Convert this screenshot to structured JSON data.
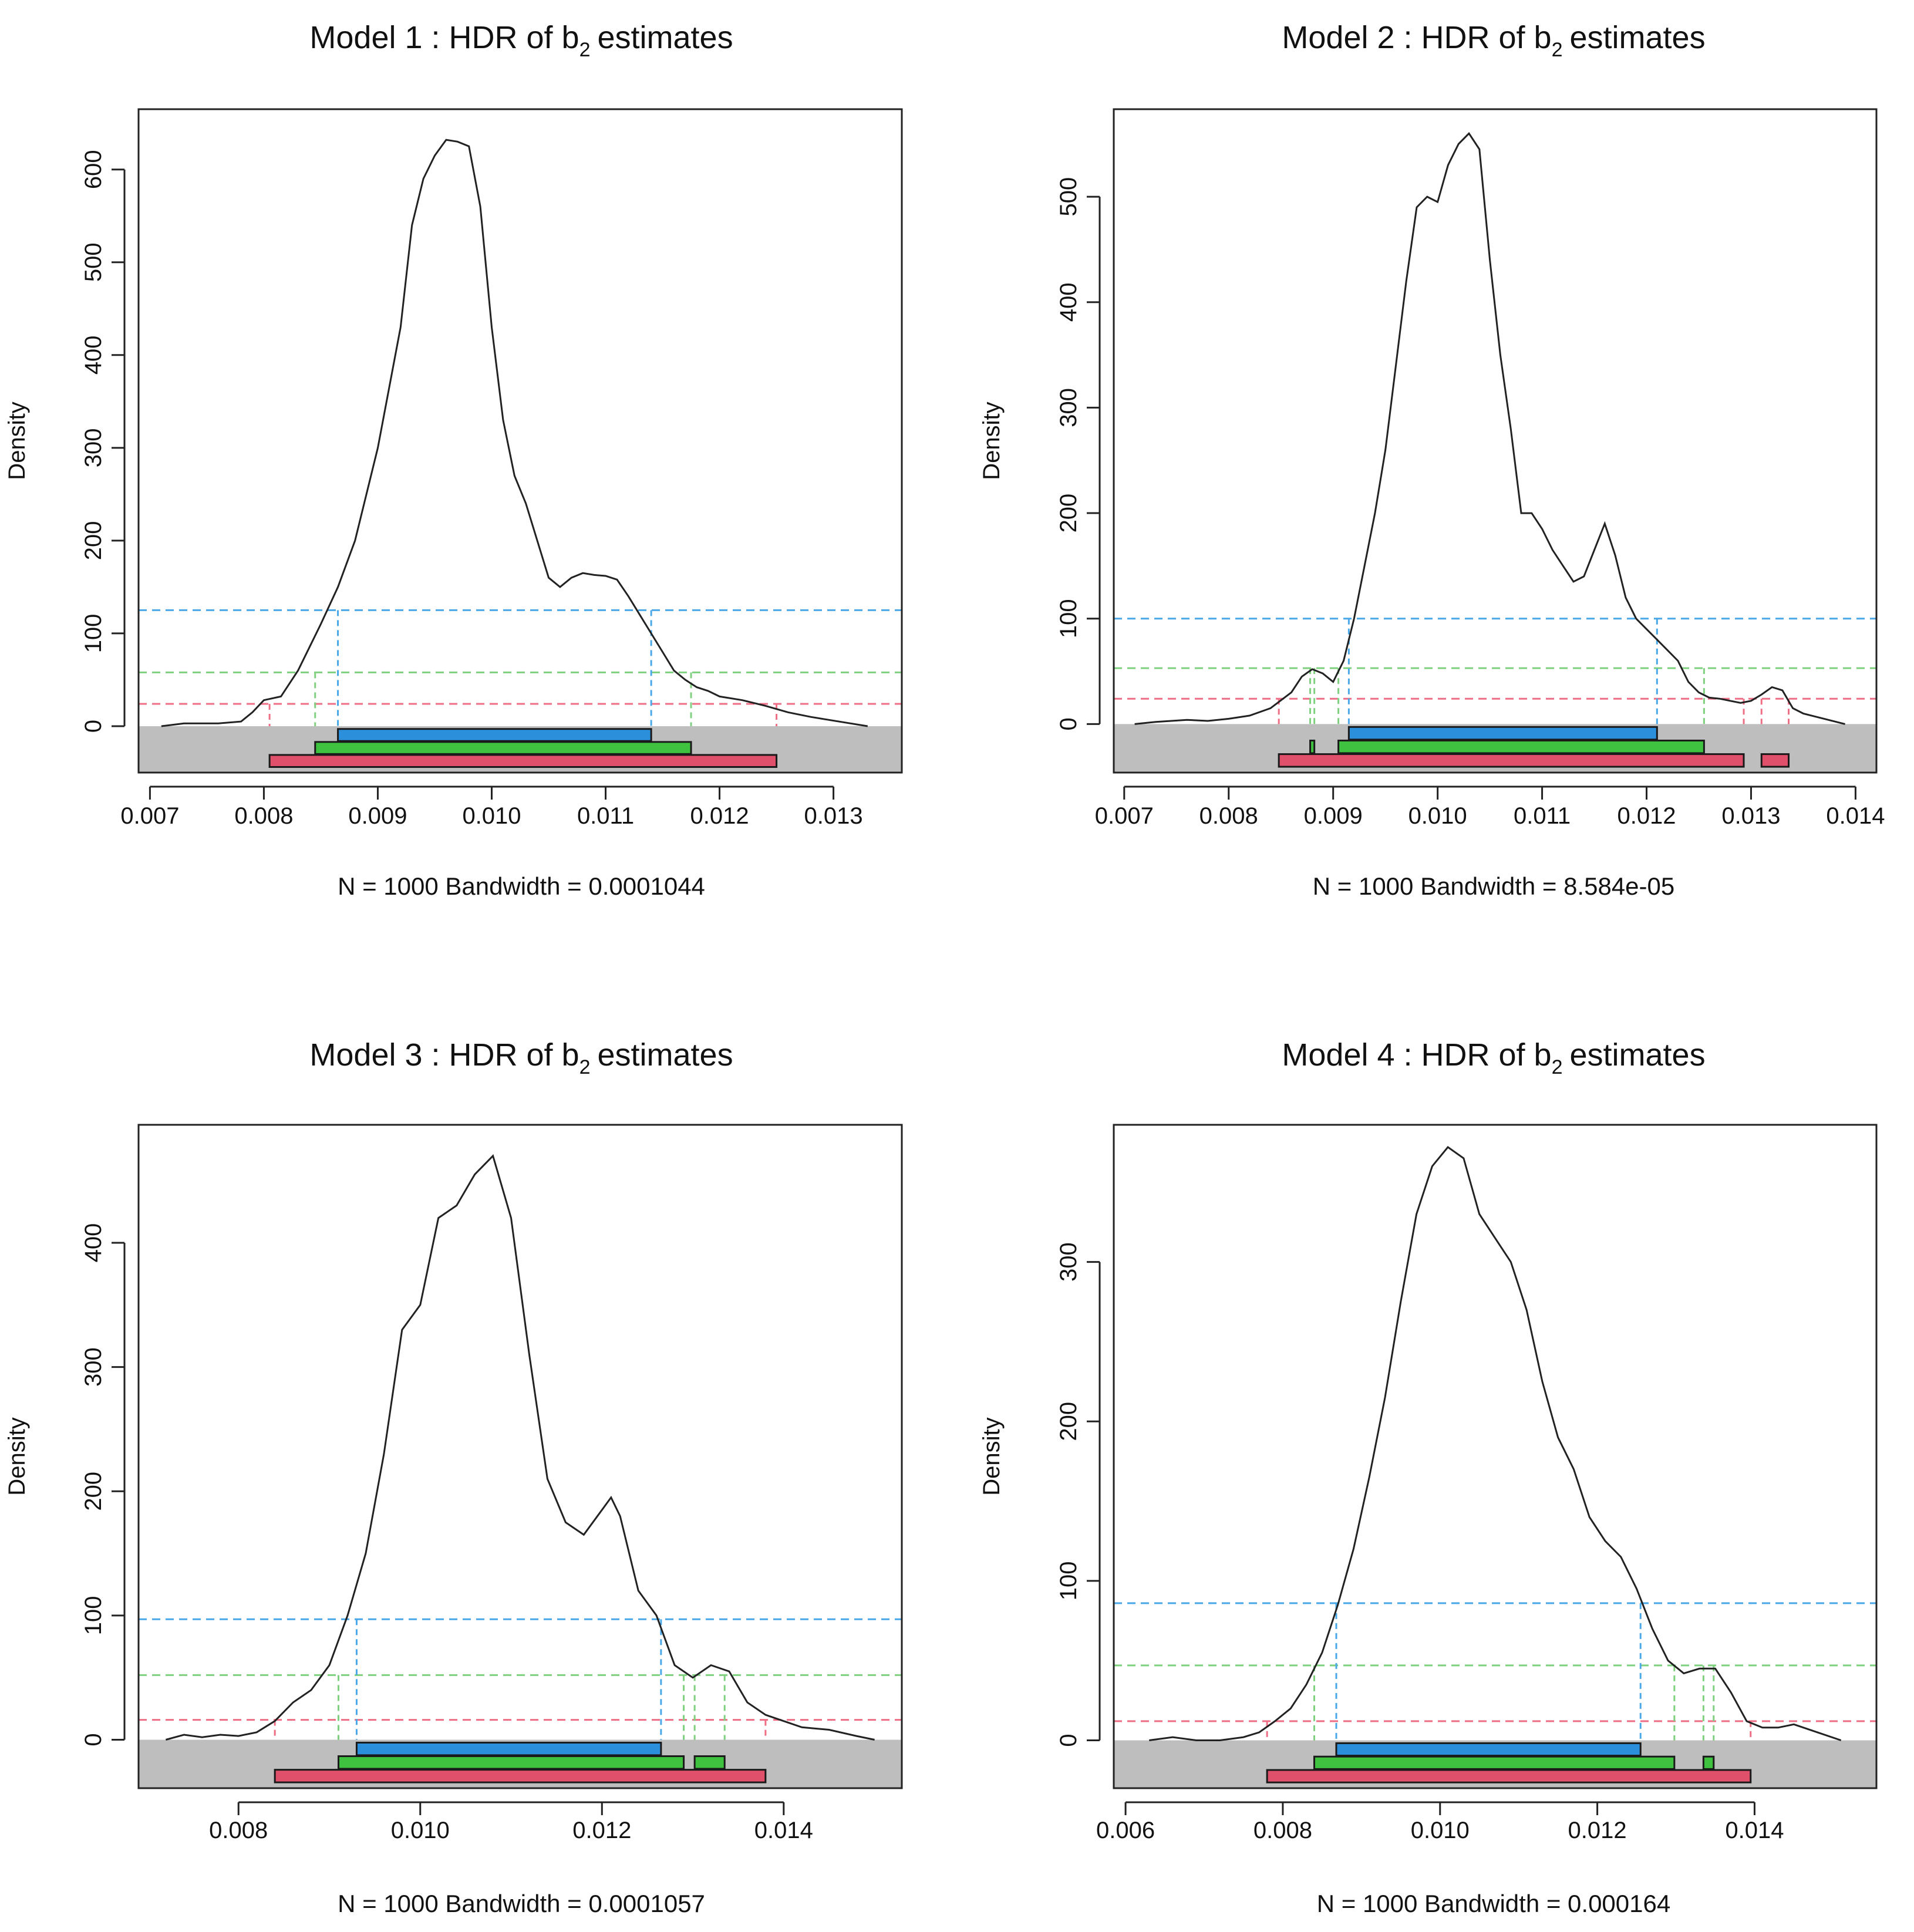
{
  "colors": {
    "hdr50": "#2b8fdb",
    "hdr95": "#3fc23f",
    "hdr99": "#e0506a",
    "line50": "#4aa8e8",
    "line95": "#7fd07f",
    "line99": "#ee6f85",
    "shade": "#bebebe",
    "curve": "#222222"
  },
  "chart_data": [
    {
      "type": "line",
      "title": "Model 1 :  HDR of b",
      "title_subscript": "2",
      "title_suffix": "estimates",
      "ylabel": "Density",
      "xsub": "N = 1000   Bandwidth = 0.0001044",
      "xlim": [
        0.0069,
        0.0136
      ],
      "ylim": [
        -50,
        665
      ],
      "xticks": [
        0.007,
        0.008,
        0.009,
        0.01,
        0.011,
        0.012,
        0.013
      ],
      "xtick_labels": [
        "0.007",
        "0.008",
        "0.009",
        "0.010",
        "0.011",
        "0.012",
        "0.013"
      ],
      "yticks": [
        0,
        100,
        200,
        300,
        400,
        500,
        600
      ],
      "ytick_labels": [
        "0",
        "100",
        "200",
        "300",
        "400",
        "500",
        "600"
      ],
      "density": {
        "x": [
          0.0071,
          0.0073,
          0.0076,
          0.0078,
          0.0079,
          0.008,
          0.00815,
          0.0083,
          0.0085,
          0.00865,
          0.0088,
          0.009,
          0.0092,
          0.0093,
          0.0094,
          0.0095,
          0.0096,
          0.0097,
          0.0098,
          0.0099,
          0.01,
          0.0101,
          0.0102,
          0.0103,
          0.0104,
          0.0105,
          0.0106,
          0.0107,
          0.0108,
          0.0109,
          0.011,
          0.0111,
          0.0112,
          0.0113,
          0.0114,
          0.0115,
          0.0116,
          0.0117,
          0.0118,
          0.0119,
          0.012,
          0.0122,
          0.0124,
          0.0126,
          0.0128,
          0.0131,
          0.0133
        ],
        "y": [
          0,
          3,
          3,
          5,
          15,
          28,
          32,
          60,
          110,
          150,
          200,
          300,
          430,
          540,
          590,
          615,
          632,
          630,
          625,
          560,
          430,
          330,
          270,
          240,
          200,
          160,
          150,
          160,
          165,
          163,
          162,
          158,
          140,
          120,
          100,
          80,
          60,
          50,
          42,
          38,
          32,
          28,
          22,
          15,
          10,
          4,
          0
        ]
      },
      "hdr_levels": {
        "h50": 125,
        "h95": 58,
        "h99": 24
      },
      "hdr_intervals": {
        "hdr50": [
          [
            0.00865,
            0.0114
          ]
        ],
        "hdr95": [
          [
            0.00845,
            0.01175
          ]
        ],
        "hdr99": [
          [
            0.00805,
            0.0125
          ]
        ]
      }
    },
    {
      "type": "line",
      "title": "Model 2 :  HDR of b",
      "title_subscript": "2",
      "title_suffix": "estimates",
      "ylabel": "Density",
      "xsub": "N = 1000   Bandwidth = 8.584e-05",
      "xlim": [
        0.0069,
        0.0142
      ],
      "ylim": [
        -46,
        583
      ],
      "xticks": [
        0.007,
        0.008,
        0.009,
        0.01,
        0.011,
        0.012,
        0.013,
        0.014
      ],
      "xtick_labels": [
        "0.007",
        "0.008",
        "0.009",
        "0.010",
        "0.011",
        "0.012",
        "0.013",
        "0.014"
      ],
      "yticks": [
        0,
        100,
        200,
        300,
        400,
        500
      ],
      "ytick_labels": [
        "0",
        "100",
        "200",
        "300",
        "400",
        "500"
      ],
      "density": {
        "x": [
          0.0071,
          0.0073,
          0.0076,
          0.0078,
          0.008,
          0.0082,
          0.0084,
          0.0086,
          0.0087,
          0.0088,
          0.0089,
          0.009,
          0.0091,
          0.0092,
          0.0093,
          0.0094,
          0.0095,
          0.0096,
          0.0097,
          0.0098,
          0.0099,
          0.01,
          0.0101,
          0.0102,
          0.0103,
          0.0104,
          0.0105,
          0.0106,
          0.0107,
          0.0108,
          0.0109,
          0.011,
          0.0111,
          0.0112,
          0.0113,
          0.0114,
          0.0115,
          0.0116,
          0.0117,
          0.0118,
          0.0119,
          0.012,
          0.0121,
          0.0122,
          0.0123,
          0.0124,
          0.0125,
          0.0126,
          0.0127,
          0.0128,
          0.0129,
          0.013,
          0.0131,
          0.0132,
          0.0133,
          0.0134,
          0.0135,
          0.0137,
          0.0139
        ],
        "y": [
          0,
          2,
          4,
          3,
          5,
          8,
          15,
          30,
          45,
          52,
          48,
          40,
          60,
          100,
          150,
          200,
          260,
          340,
          420,
          490,
          500,
          495,
          530,
          550,
          560,
          545,
          440,
          350,
          280,
          200,
          200,
          185,
          165,
          150,
          135,
          140,
          165,
          190,
          160,
          120,
          100,
          90,
          80,
          70,
          60,
          40,
          30,
          25,
          24,
          22,
          20,
          22,
          28,
          35,
          32,
          15,
          10,
          5,
          0
        ]
      },
      "hdr_levels": {
        "h50": 100,
        "h95": 53,
        "h99": 24
      },
      "hdr_intervals": {
        "hdr50": [
          [
            0.00915,
            0.0121
          ]
        ],
        "hdr95": [
          [
            0.00878,
            0.00882
          ],
          [
            0.00905,
            0.01255
          ]
        ],
        "hdr99": [
          [
            0.00848,
            0.01293
          ],
          [
            0.0131,
            0.01336
          ]
        ]
      }
    },
    {
      "type": "line",
      "title": "Model 3 :  HDR of b",
      "title_subscript": "2",
      "title_suffix": "estimates",
      "ylabel": "Density",
      "xsub": "N = 1000   Bandwidth = 0.0001057",
      "xlim": [
        0.0069,
        0.0153
      ],
      "ylim": [
        -39,
        495
      ],
      "xticks": [
        0.008,
        0.01,
        0.012,
        0.014
      ],
      "xtick_labels": [
        "0.008",
        "0.010",
        "0.012",
        "0.014"
      ],
      "yticks": [
        0,
        100,
        200,
        300,
        400
      ],
      "ytick_labels": [
        "0",
        "100",
        "200",
        "300",
        "400"
      ],
      "density": {
        "x": [
          0.0072,
          0.0074,
          0.0076,
          0.0078,
          0.008,
          0.0082,
          0.0084,
          0.0086,
          0.0088,
          0.009,
          0.0092,
          0.0094,
          0.0096,
          0.0098,
          0.01,
          0.0102,
          0.0104,
          0.0106,
          0.0108,
          0.011,
          0.0112,
          0.0114,
          0.0116,
          0.0118,
          0.012,
          0.0121,
          0.0122,
          0.0124,
          0.0126,
          0.0128,
          0.013,
          0.0132,
          0.0134,
          0.0136,
          0.0138,
          0.014,
          0.0142,
          0.0145,
          0.0148,
          0.015
        ],
        "y": [
          0,
          4,
          2,
          4,
          3,
          6,
          15,
          30,
          40,
          60,
          100,
          150,
          230,
          330,
          350,
          420,
          430,
          455,
          470,
          420,
          310,
          210,
          175,
          165,
          185,
          195,
          180,
          120,
          100,
          60,
          50,
          60,
          55,
          30,
          20,
          15,
          10,
          8,
          3,
          0
        ]
      },
      "hdr_levels": {
        "h50": 97,
        "h95": 52,
        "h99": 16
      },
      "hdr_intervals": {
        "hdr50": [
          [
            0.0093,
            0.01265
          ]
        ],
        "hdr95": [
          [
            0.0091,
            0.0129
          ],
          [
            0.01302,
            0.01335
          ]
        ],
        "hdr99": [
          [
            0.0084,
            0.0138
          ]
        ]
      }
    },
    {
      "type": "line",
      "title": "Model 4 :  HDR of b",
      "title_subscript": "2",
      "title_suffix": "estimates",
      "ylabel": "Density",
      "xsub": "N = 1000   Bandwidth = 0.000164",
      "xlim": [
        0.00585,
        0.01555
      ],
      "ylim": [
        -30,
        386
      ],
      "xticks": [
        0.006,
        0.008,
        0.01,
        0.012,
        0.014
      ],
      "xtick_labels": [
        "0.006",
        "0.008",
        "0.010",
        "0.012",
        "0.014"
      ],
      "yticks": [
        0,
        100,
        200,
        300
      ],
      "ytick_labels": [
        "0",
        "100",
        "200",
        "300"
      ],
      "density": {
        "x": [
          0.0063,
          0.0066,
          0.0069,
          0.0072,
          0.0075,
          0.0077,
          0.0079,
          0.0081,
          0.0083,
          0.0085,
          0.0087,
          0.0089,
          0.0091,
          0.0093,
          0.0095,
          0.0097,
          0.0099,
          0.0101,
          0.0103,
          0.0105,
          0.0107,
          0.0109,
          0.0111,
          0.0113,
          0.0115,
          0.0117,
          0.0119,
          0.0121,
          0.0123,
          0.0125,
          0.0127,
          0.0129,
          0.0131,
          0.0133,
          0.0135,
          0.0137,
          0.0139,
          0.0141,
          0.0143,
          0.0145,
          0.0148,
          0.0151
        ],
        "y": [
          0,
          2,
          0,
          0,
          2,
          5,
          12,
          20,
          35,
          55,
          85,
          120,
          165,
          215,
          275,
          330,
          360,
          372,
          365,
          330,
          315,
          300,
          270,
          225,
          190,
          170,
          140,
          125,
          115,
          95,
          70,
          50,
          42,
          45,
          45,
          30,
          12,
          8,
          8,
          10,
          5,
          0
        ]
      },
      "hdr_levels": {
        "h50": 86,
        "h95": 47,
        "h99": 12
      },
      "hdr_intervals": {
        "hdr50": [
          [
            0.00868,
            0.01255
          ]
        ],
        "hdr95": [
          [
            0.0084,
            0.01298
          ],
          [
            0.01335,
            0.01348
          ]
        ],
        "hdr99": [
          [
            0.0078,
            0.01395
          ]
        ]
      }
    }
  ]
}
